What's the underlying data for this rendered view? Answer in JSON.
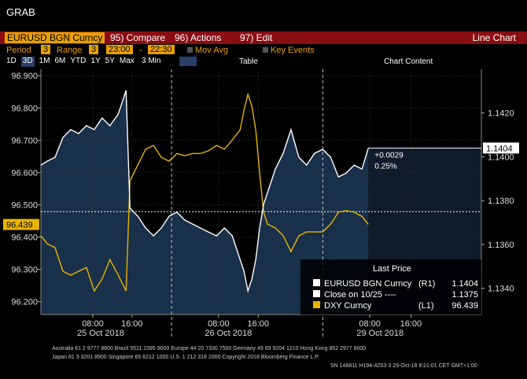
{
  "window_title": "GRAB",
  "toolbar": {
    "security": "EURUSD BGN Curncy",
    "buttons": [
      "95) Compare",
      "96) Actions",
      "97) Edit"
    ],
    "view": "Line Chart"
  },
  "settings": {
    "period_label": "Period",
    "period": "3",
    "range_label": "Range",
    "range": "3",
    "start": "23:00",
    "dash": "-",
    "end": "22:30",
    "mov_avg": "Mov Avg",
    "key_events": "Key Events"
  },
  "ranges": [
    "1D",
    "3D",
    "1M",
    "6M",
    "YTD",
    "1Y",
    "5Y",
    "Max"
  ],
  "interval": "3 Min",
  "table": "Table",
  "chart_content": "Chart Content",
  "chart_data": {
    "type": "line",
    "x": [
      0,
      1.3,
      2.9,
      4.5,
      6.1,
      7.7,
      9.3,
      10.9,
      12.5,
      14.1,
      15.8,
      17.4,
      18.2,
      19.8,
      21.4,
      23.0,
      24.6,
      26.2,
      27.8,
      29.4,
      31.0,
      32.6,
      34.2,
      35.9,
      37.5,
      39.1,
      40.7,
      41.5,
      42.3,
      43.1,
      43.9,
      44.7,
      45.5,
      46.3,
      47.9,
      49.5,
      51.1,
      52.7,
      54.3,
      55.9,
      57.6,
      59.2,
      60.8,
      62.4,
      64.0,
      65.6,
      66.9
    ],
    "series": [
      {
        "name": "EURUSD BGN Curncy",
        "tag": "(R1)",
        "axis": "y2",
        "color": "#ffffff",
        "values": [
          1.13962,
          1.1398,
          1.13998,
          1.14088,
          1.14124,
          1.14106,
          1.14142,
          1.14124,
          1.14177,
          1.14142,
          1.14195,
          1.14303,
          1.13765,
          1.13729,
          1.13675,
          1.13639,
          1.13675,
          1.13729,
          1.13747,
          1.13711,
          1.13693,
          1.13675,
          1.13657,
          1.13639,
          1.13675,
          1.13639,
          1.13531,
          1.13477,
          1.13388,
          1.13441,
          1.13531,
          1.13675,
          1.13783,
          1.13836,
          1.13944,
          1.14016,
          1.14124,
          1.13998,
          1.13962,
          1.14016,
          1.14034,
          1.13998,
          1.13908,
          1.13926,
          1.13962,
          1.13944,
          1.1404
        ]
      },
      {
        "name": "DXY Curncy",
        "tag": "(L1)",
        "axis": "y",
        "color": "#e8b400",
        "values": [
          96.404,
          96.379,
          96.367,
          96.294,
          96.282,
          96.294,
          96.306,
          96.233,
          96.27,
          96.33,
          96.282,
          96.233,
          96.574,
          96.623,
          96.672,
          96.684,
          96.647,
          96.635,
          96.659,
          96.652,
          96.659,
          96.659,
          96.667,
          96.684,
          96.672,
          96.701,
          96.732,
          96.793,
          96.842,
          96.806,
          96.732,
          96.598,
          96.477,
          96.44,
          96.428,
          96.404,
          96.355,
          96.404,
          96.416,
          96.416,
          96.416,
          96.44,
          96.477,
          96.482,
          96.477,
          96.464,
          96.439
        ]
      }
    ],
    "reference": {
      "name": "Close on 10/25 ----",
      "value": 1.1375,
      "axis": "y2",
      "color": "#ffffff"
    },
    "legend_title": "Last Price",
    "annotations": [
      "+0.0029",
      "0.25%"
    ],
    "xlim": [
      0,
      90
    ],
    "xticks": [
      {
        "value": 10.6,
        "label": "08:00"
      },
      {
        "value": 18.6,
        "label": "16:00"
      },
      {
        "value": 36.3,
        "label": "08:00"
      },
      {
        "value": 44.4,
        "label": "16:00"
      },
      {
        "value": 67.2,
        "label": "08:00"
      },
      {
        "value": 75.6,
        "label": "16:00"
      }
    ],
    "date_labels": [
      {
        "value": 12.2,
        "label": "25 Oct 2018"
      },
      {
        "value": 38.3,
        "label": "26 Oct 2018"
      },
      {
        "value": 69.3,
        "label": "29 Oct 2018"
      }
    ],
    "day_breaks": [
      26.7,
      57.6
    ],
    "ylim": [
      96.16,
      96.92
    ],
    "yticks": [
      {
        "value": 96.9,
        "label": "96.900"
      },
      {
        "value": 96.8,
        "label": "96.800"
      },
      {
        "value": 96.7,
        "label": "96.700"
      },
      {
        "value": 96.6,
        "label": "96.600"
      },
      {
        "value": 96.5,
        "label": "96.500"
      },
      {
        "value": 96.4,
        "label": "96.400"
      },
      {
        "value": 96.3,
        "label": "96.300"
      },
      {
        "value": 96.2,
        "label": "96.200"
      }
    ],
    "y2lim": [
      1.1328,
      1.144
    ],
    "y2ticks": [
      {
        "value": 1.142,
        "label": "1.1420"
      },
      {
        "value": 1.14,
        "label": "1.1400"
      },
      {
        "value": 1.138,
        "label": "1.1380"
      },
      {
        "value": 1.136,
        "label": "1.1360"
      },
      {
        "value": 1.134,
        "label": "1.1340"
      }
    ],
    "grid": true
  },
  "footer": [
    "Australia 61 2 9777 8600 Brazil 5511 2395 9000 Europe 44 20 7330 7500 Germany 49 69 9204 1210 Hong Kong 852 2977 6000",
    "Japan 81 3 3201 8900          Singapore 65 6212 1000          U.S. 1 212 318 2000          Copyright 2018 Bloomberg Finance L.P.",
    "SN 148811 H194-4253-3 29-Oct-18   8:21:01 CET  GMT+1:00"
  ]
}
